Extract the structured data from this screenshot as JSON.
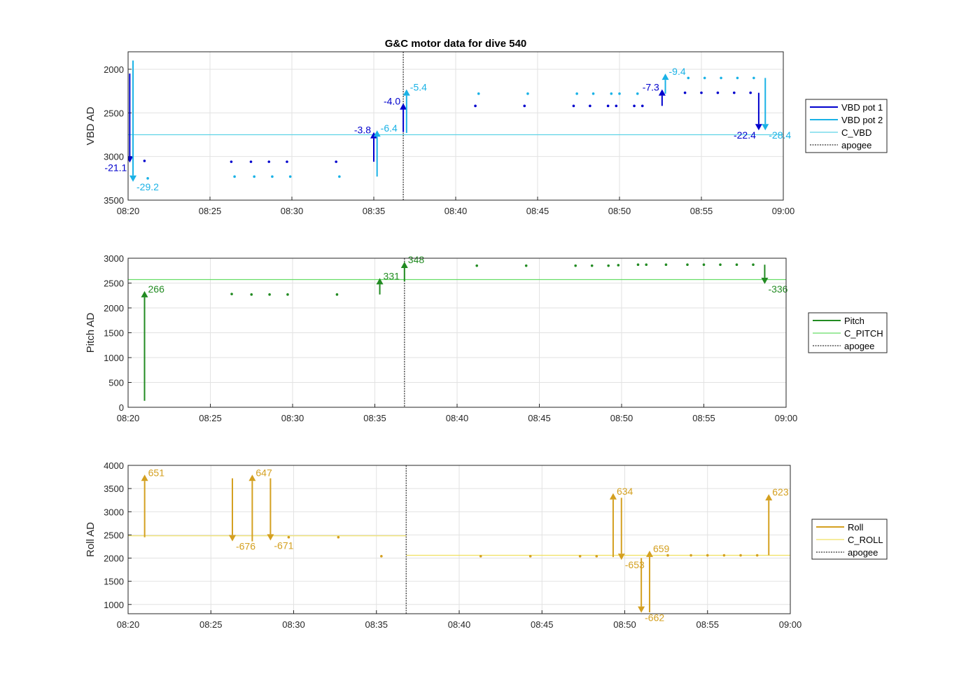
{
  "title": "G&C motor data for dive 540",
  "colors": {
    "vbd1": "#0000cd",
    "vbd2": "#1ab2e6",
    "c_vbd": "#5ed3e6",
    "pitch": "#228b22",
    "c_pitch": "#66dd66",
    "roll": "#d4a020",
    "c_roll": "#f0e060",
    "apogee": "#555555",
    "grid": "#e2e2e2"
  },
  "chart_data": [
    {
      "type": "line",
      "ylabel": "VBD AD",
      "y_reversed": true,
      "ylim": [
        1800,
        3500
      ],
      "yticks": [
        2000,
        2500,
        3000,
        3500
      ],
      "xlim": [
        "08:20",
        "09:00"
      ],
      "xticks": [
        "08:20",
        "08:25",
        "08:30",
        "08:35",
        "08:40",
        "08:45",
        "08:50",
        "08:55",
        "09:00"
      ],
      "grid": true,
      "legend_position": "right",
      "legend": [
        "VBD pot 1",
        "VBD pot 2",
        "C_VBD",
        "apogee"
      ],
      "apogee_time": "08:36.8",
      "reference_lines": [
        {
          "name": "C_VBD",
          "value": 2750,
          "color_key": "c_vbd"
        }
      ],
      "series": [
        {
          "name": "VBD pot 1",
          "color_key": "vbd1",
          "points": [
            [
              "08:21.0",
              3050
            ],
            [
              "08:26.3",
              3060
            ],
            [
              "08:27.5",
              3060
            ],
            [
              "08:28.6",
              3060
            ],
            [
              "08:29.7",
              3060
            ],
            [
              "08:32.7",
              3060
            ],
            [
              "08:41.2",
              2420
            ],
            [
              "08:44.2",
              2420
            ],
            [
              "08:47.2",
              2420
            ],
            [
              "08:48.2",
              2420
            ],
            [
              "08:49.3",
              2420
            ],
            [
              "08:49.8",
              2420
            ],
            [
              "08:50.9",
              2420
            ],
            [
              "08:51.4",
              2420
            ],
            [
              "08:54.0",
              2270
            ],
            [
              "08:55.0",
              2270
            ],
            [
              "08:56.0",
              2270
            ],
            [
              "08:57.0",
              2270
            ],
            [
              "08:58.0",
              2270
            ]
          ],
          "moves": [
            {
              "t": "08:20.1",
              "y0": 2050,
              "y1": 3070,
              "label": "-21.1",
              "label_side": "left"
            },
            {
              "t": "08:35.0",
              "y0": 3060,
              "y1": 2720,
              "label": "-3.8",
              "label_side": "left"
            },
            {
              "t": "08:36.8",
              "y0": 2720,
              "y1": 2390,
              "label": "-4.0",
              "label_side": "left"
            },
            {
              "t": "08:52.6",
              "y0": 2420,
              "y1": 2230,
              "label": "-7.3",
              "label_side": "left"
            },
            {
              "t": "08:58.5",
              "y0": 2270,
              "y1": 2700,
              "label": "-22.4",
              "label_side": "left"
            }
          ]
        },
        {
          "name": "VBD pot 2",
          "color_key": "vbd2",
          "points": [
            [
              "08:21.2",
              3250
            ],
            [
              "08:26.5",
              3230
            ],
            [
              "08:27.7",
              3230
            ],
            [
              "08:28.8",
              3230
            ],
            [
              "08:29.9",
              3230
            ],
            [
              "08:32.9",
              3230
            ],
            [
              "08:41.4",
              2280
            ],
            [
              "08:44.4",
              2280
            ],
            [
              "08:47.4",
              2280
            ],
            [
              "08:48.4",
              2280
            ],
            [
              "08:49.5",
              2280
            ],
            [
              "08:50.0",
              2280
            ],
            [
              "08:51.1",
              2280
            ],
            [
              "08:54.2",
              2100
            ],
            [
              "08:55.2",
              2100
            ],
            [
              "08:56.2",
              2100
            ],
            [
              "08:57.2",
              2100
            ],
            [
              "08:58.2",
              2100
            ]
          ],
          "moves": [
            {
              "t": "08:20.3",
              "y0": 1900,
              "y1": 3290,
              "label": "-29.2",
              "label_side": "right"
            },
            {
              "t": "08:35.2",
              "y0": 3230,
              "y1": 2700,
              "label": "-6.4",
              "label_side": "right"
            },
            {
              "t": "08:37.0",
              "y0": 2730,
              "y1": 2230,
              "label": "-5.4",
              "label_side": "right"
            },
            {
              "t": "08:52.8",
              "y0": 2280,
              "y1": 2050,
              "label": "-9.4",
              "label_side": "right"
            },
            {
              "t": "08:58.9",
              "y0": 2100,
              "y1": 2700,
              "label": "-28.4",
              "label_side": "right"
            }
          ]
        }
      ]
    },
    {
      "type": "line",
      "ylabel": "Pitch AD",
      "y_reversed": false,
      "ylim": [
        0,
        3000
      ],
      "yticks": [
        0,
        500,
        1000,
        1500,
        2000,
        2500,
        3000
      ],
      "xlim": [
        "08:20",
        "09:00"
      ],
      "xticks": [
        "08:20",
        "08:25",
        "08:30",
        "08:35",
        "08:40",
        "08:45",
        "08:50",
        "08:55",
        "09:00"
      ],
      "grid": true,
      "legend_position": "right",
      "legend": [
        "Pitch",
        "C_PITCH",
        "apogee"
      ],
      "apogee_time": "08:36.8",
      "reference_lines": [
        {
          "name": "C_PITCH",
          "value": 2570,
          "color_key": "c_pitch"
        }
      ],
      "series": [
        {
          "name": "Pitch",
          "color_key": "pitch",
          "points": [
            [
              "08:26.3",
              2280
            ],
            [
              "08:27.5",
              2270
            ],
            [
              "08:28.6",
              2270
            ],
            [
              "08:29.7",
              2270
            ],
            [
              "08:32.7",
              2270
            ],
            [
              "08:41.2",
              2850
            ],
            [
              "08:44.2",
              2850
            ],
            [
              "08:47.2",
              2850
            ],
            [
              "08:48.2",
              2850
            ],
            [
              "08:49.2",
              2850
            ],
            [
              "08:49.8",
              2860
            ],
            [
              "08:51.0",
              2870
            ],
            [
              "08:51.5",
              2870
            ],
            [
              "08:52.7",
              2870
            ],
            [
              "08:54.0",
              2870
            ],
            [
              "08:55.0",
              2870
            ],
            [
              "08:56.0",
              2870
            ],
            [
              "08:57.0",
              2870
            ],
            [
              "08:58.0",
              2870
            ]
          ],
          "moves": [
            {
              "t": "08:21.0",
              "y0": 130,
              "y1": 2340,
              "label": "266",
              "label_side": "right"
            },
            {
              "t": "08:35.3",
              "y0": 2270,
              "y1": 2600,
              "label": "331",
              "label_side": "right"
            },
            {
              "t": "08:36.8",
              "y0": 2530,
              "y1": 2930,
              "label": "348",
              "label_side": "right"
            },
            {
              "t": "08:58.7",
              "y0": 2870,
              "y1": 2480,
              "label": "-336",
              "label_side": "right"
            }
          ]
        }
      ]
    },
    {
      "type": "line",
      "ylabel": "Roll AD",
      "y_reversed": false,
      "ylim": [
        800,
        4000
      ],
      "yticks": [
        1000,
        1500,
        2000,
        2500,
        3000,
        3500,
        4000
      ],
      "xlim": [
        "08:20",
        "09:00"
      ],
      "xticks": [
        "08:20",
        "08:25",
        "08:30",
        "08:35",
        "08:40",
        "08:45",
        "08:50",
        "08:55",
        "09:00"
      ],
      "grid": true,
      "legend_position": "right",
      "legend": [
        "Roll",
        "C_ROLL",
        "apogee"
      ],
      "apogee_time": "08:36.8",
      "reference_segments": [
        {
          "name": "C_ROLL",
          "t0": "08:20.0",
          "t1": "08:36.8",
          "value": 2480,
          "color_key": "c_roll"
        },
        {
          "name": "C_ROLL",
          "t0": "08:36.8",
          "t1": "09:00.0",
          "value": 2060,
          "color_key": "c_roll"
        }
      ],
      "series": [
        {
          "name": "Roll",
          "color_key": "roll",
          "points": [
            [
              "08:29.7",
              2450
            ],
            [
              "08:32.7",
              2450
            ],
            [
              "08:35.3",
              2040
            ],
            [
              "08:41.3",
              2040
            ],
            [
              "08:44.3",
              2040
            ],
            [
              "08:47.3",
              2040
            ],
            [
              "08:48.3",
              2040
            ],
            [
              "08:52.6",
              2060
            ],
            [
              "08:54.0",
              2060
            ],
            [
              "08:55.0",
              2060
            ],
            [
              "08:56.0",
              2060
            ],
            [
              "08:57.0",
              2060
            ],
            [
              "08:58.0",
              2060
            ]
          ],
          "moves": [
            {
              "t": "08:21.0",
              "y0": 2450,
              "y1": 3800,
              "label": "651",
              "label_side": "right"
            },
            {
              "t": "08:26.3",
              "y0": 3720,
              "y1": 2360,
              "label": "-676",
              "label_side": "right"
            },
            {
              "t": "08:27.5",
              "y0": 2360,
              "y1": 3800,
              "label": "647",
              "label_side": "right"
            },
            {
              "t": "08:28.6",
              "y0": 3720,
              "y1": 2380,
              "label": "-671",
              "label_side": "right"
            },
            {
              "t": "08:49.3",
              "y0": 2020,
              "y1": 3400,
              "label": "634",
              "label_side": "right"
            },
            {
              "t": "08:49.8",
              "y0": 3300,
              "y1": 1960,
              "label": "-653",
              "label_side": "right"
            },
            {
              "t": "08:51.0",
              "y0": 2000,
              "y1": 820,
              "label": "-662",
              "label_side": "right"
            },
            {
              "t": "08:51.5",
              "y0": 830,
              "y1": 2160,
              "label": "659",
              "label_side": "right"
            },
            {
              "t": "08:58.7",
              "y0": 2060,
              "y1": 3380,
              "label": "623",
              "label_side": "right"
            }
          ]
        }
      ]
    }
  ]
}
